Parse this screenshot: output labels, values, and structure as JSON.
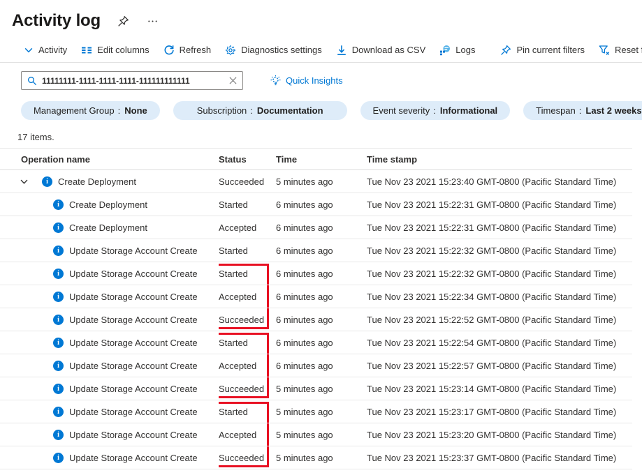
{
  "page": {
    "title": "Activity log"
  },
  "header_icons": {
    "pin": "pin-icon",
    "more": "more-options-icon"
  },
  "toolbar": {
    "items": [
      {
        "id": "activity",
        "label": "Activity",
        "icon": "chevron-down"
      },
      {
        "id": "edit-columns",
        "label": "Edit columns",
        "icon": "edit-columns"
      },
      {
        "id": "refresh",
        "label": "Refresh",
        "icon": "refresh"
      },
      {
        "id": "diagnostics-settings",
        "label": "Diagnostics settings",
        "icon": "gear"
      },
      {
        "id": "download-csv",
        "label": "Download as CSV",
        "icon": "download"
      },
      {
        "id": "logs",
        "label": "Logs",
        "icon": "logs"
      },
      {
        "type": "divider"
      },
      {
        "id": "pin-current-filters",
        "label": "Pin current filters",
        "icon": "pin"
      },
      {
        "id": "reset-filters",
        "label": "Reset filters",
        "icon": "filter-x"
      }
    ]
  },
  "search": {
    "value": "11111111-1111-1111-1111-111111111111"
  },
  "quick_insights": {
    "label": "Quick Insights"
  },
  "filters": [
    {
      "id": "management-group",
      "name": "Management Group",
      "value": "None"
    },
    {
      "id": "subscription",
      "name": "Subscription",
      "value": "Documentation"
    },
    {
      "id": "event-severity",
      "name": "Event severity",
      "value": "Informational"
    },
    {
      "id": "timespan",
      "name": "Timespan",
      "value": "Last 2 weeks"
    }
  ],
  "items_count": "17 items.",
  "table": {
    "columns": [
      "Operation name",
      "Status",
      "Time",
      "Time stamp"
    ],
    "rows": [
      {
        "operation": "Create Deployment",
        "status": "Succeeded",
        "time": "5 minutes ago",
        "timestamp": "Tue Nov 23 2021 15:23:40 GMT-0800 (Pacific Standard Time)",
        "expandable": true,
        "highlight": null
      },
      {
        "operation": "Create Deployment",
        "status": "Started",
        "time": "6 minutes ago",
        "timestamp": "Tue Nov 23 2021 15:22:31 GMT-0800 (Pacific Standard Time)",
        "expandable": false,
        "highlight": null
      },
      {
        "operation": "Create Deployment",
        "status": "Accepted",
        "time": "6 minutes ago",
        "timestamp": "Tue Nov 23 2021 15:22:31 GMT-0800 (Pacific Standard Time)",
        "expandable": false,
        "highlight": null
      },
      {
        "operation": "Update Storage Account Create",
        "status": "Started",
        "time": "6 minutes ago",
        "timestamp": "Tue Nov 23 2021 15:22:32 GMT-0800 (Pacific Standard Time)",
        "expandable": false,
        "highlight": null
      },
      {
        "operation": "Update Storage Account Create",
        "status": "Started",
        "time": "6 minutes ago",
        "timestamp": "Tue Nov 23 2021 15:22:32 GMT-0800 (Pacific Standard Time)",
        "expandable": false,
        "highlight": "top"
      },
      {
        "operation": "Update Storage Account Create",
        "status": "Accepted",
        "time": "6 minutes ago",
        "timestamp": "Tue Nov 23 2021 15:22:34 GMT-0800 (Pacific Standard Time)",
        "expandable": false,
        "highlight": "mid"
      },
      {
        "operation": "Update Storage Account Create",
        "status": "Succeeded",
        "time": "6 minutes ago",
        "timestamp": "Tue Nov 23 2021 15:22:52 GMT-0800 (Pacific Standard Time)",
        "expandable": false,
        "highlight": "bottom"
      },
      {
        "operation": "Update Storage Account Create",
        "status": "Started",
        "time": "6 minutes ago",
        "timestamp": "Tue Nov 23 2021 15:22:54 GMT-0800 (Pacific Standard Time)",
        "expandable": false,
        "highlight": "top"
      },
      {
        "operation": "Update Storage Account Create",
        "status": "Accepted",
        "time": "6 minutes ago",
        "timestamp": "Tue Nov 23 2021 15:22:57 GMT-0800 (Pacific Standard Time)",
        "expandable": false,
        "highlight": "mid"
      },
      {
        "operation": "Update Storage Account Create",
        "status": "Succeeded",
        "time": "5 minutes ago",
        "timestamp": "Tue Nov 23 2021 15:23:14 GMT-0800 (Pacific Standard Time)",
        "expandable": false,
        "highlight": "bottom"
      },
      {
        "operation": "Update Storage Account Create",
        "status": "Started",
        "time": "5 minutes ago",
        "timestamp": "Tue Nov 23 2021 15:23:17 GMT-0800 (Pacific Standard Time)",
        "expandable": false,
        "highlight": "top"
      },
      {
        "operation": "Update Storage Account Create",
        "status": "Accepted",
        "time": "5 minutes ago",
        "timestamp": "Tue Nov 23 2021 15:23:20 GMT-0800 (Pacific Standard Time)",
        "expandable": false,
        "highlight": "mid"
      },
      {
        "operation": "Update Storage Account Create",
        "status": "Succeeded",
        "time": "5 minutes ago",
        "timestamp": "Tue Nov 23 2021 15:23:37 GMT-0800 (Pacific Standard Time)",
        "expandable": false,
        "highlight": "bottom"
      }
    ]
  },
  "colors": {
    "accent": "#0078d4",
    "highlight_red": "#e81123",
    "pill_bg": "#deecf9"
  }
}
